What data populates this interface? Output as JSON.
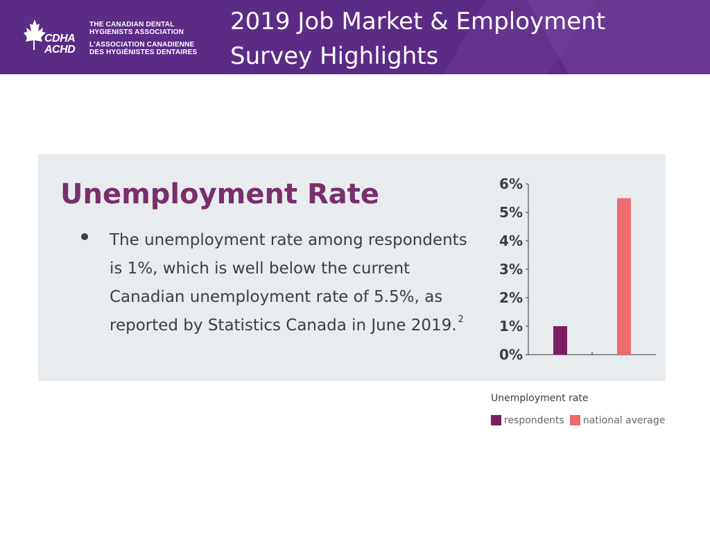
{
  "header": {
    "title_line1": "2019 Job Market & Employment",
    "title_line2": "Survey Highlights",
    "background_color": "#5b2c86",
    "logo": {
      "abbr_en": "CDHA",
      "abbr_fr": "ACHD",
      "name_en_line1": "THE CANADIAN DENTAL",
      "name_en_line2": "HYGIENISTS ASSOCIATION",
      "name_fr_line1": "L'ASSOCIATION CANADIENNE",
      "name_fr_line2": "DES HYGIÉNISTES DENTAIRES",
      "icon": "maple-leaf-icon"
    }
  },
  "panel": {
    "heading": "Unemployment Rate",
    "bullet_text": "The unemployment rate among respondents is 1%, which is well below the current Canadian unemployment rate of 5.5%, as reported by Statistics Canada in June 2019.",
    "footnote": "2",
    "heading_color": "#7a2e6a",
    "background_color": "#e8ecef"
  },
  "chart_data": {
    "type": "bar",
    "categories": [
      "respondents",
      "national average"
    ],
    "values": [
      1,
      5.5
    ],
    "colors": [
      "#7a2060",
      "#ee6b6e"
    ],
    "title": "Unemployment rate",
    "y_ticks": [
      "0%",
      "1%",
      "2%",
      "3%",
      "4%",
      "5%",
      "6%"
    ],
    "ylim": [
      0,
      6
    ],
    "unit": "%",
    "grid": false,
    "legend": {
      "position": "bottom",
      "items": [
        {
          "label": "respondents",
          "color": "#7a2060"
        },
        {
          "label": "national average",
          "color": "#ee6b6e"
        }
      ]
    }
  }
}
